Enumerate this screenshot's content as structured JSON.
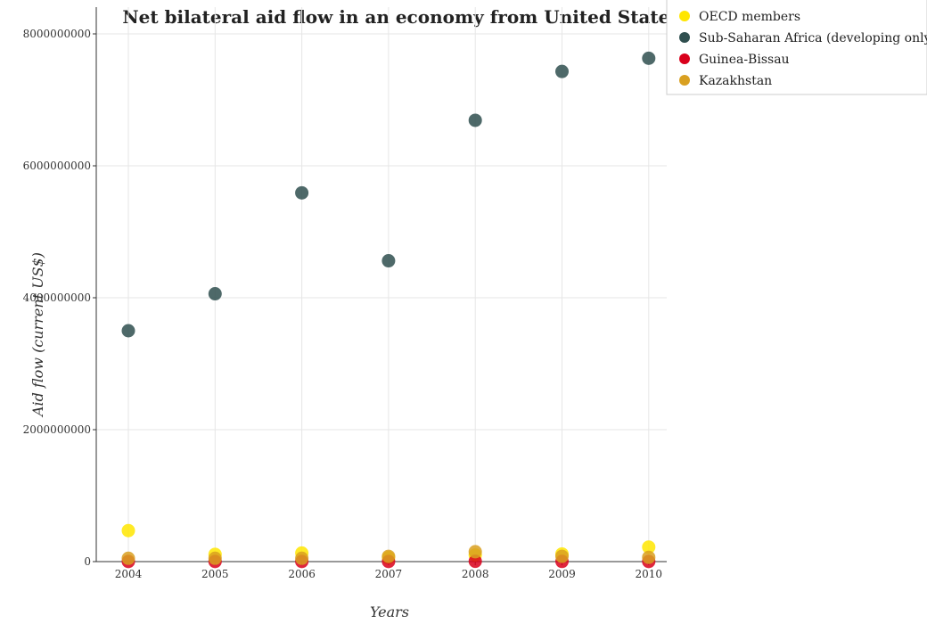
{
  "chart_data": {
    "type": "scatter",
    "title": "Net bilateral aid flow in an economy from United States",
    "xlabel": "Years",
    "ylabel": "Aid flow (current US$)",
    "x": [
      "2004",
      "2005",
      "2006",
      "2007",
      "2008",
      "2009",
      "2010"
    ],
    "ylim": [
      0,
      8000000000
    ],
    "yticks": [
      0,
      2000000000,
      4000000000,
      6000000000,
      8000000000
    ],
    "ytick_labels": [
      "0",
      "2000000000",
      "4000000000",
      "6000000000",
      "8000000000"
    ],
    "grid": true,
    "legend_position": "top-right",
    "series": [
      {
        "name": "OECD members",
        "color": "#ffe600",
        "values": [
          470000000,
          110000000,
          130000000,
          60000000,
          100000000,
          115000000,
          220000000
        ]
      },
      {
        "name": "Sub-Saharan Africa (developing only)",
        "color": "#2f4f4f",
        "values": [
          3500000000,
          4060000000,
          5590000000,
          4560000000,
          6690000000,
          7430000000,
          7630000000
        ]
      },
      {
        "name": "Guinea-Bissau",
        "color": "#d9001b",
        "values": [
          2000000,
          2000000,
          2000000,
          2000000,
          5000000,
          3000000,
          2000000
        ]
      },
      {
        "name": "Kazakhstan",
        "color": "#d9a021",
        "values": [
          50000000,
          50000000,
          50000000,
          80000000,
          150000000,
          80000000,
          65000000
        ]
      }
    ]
  }
}
